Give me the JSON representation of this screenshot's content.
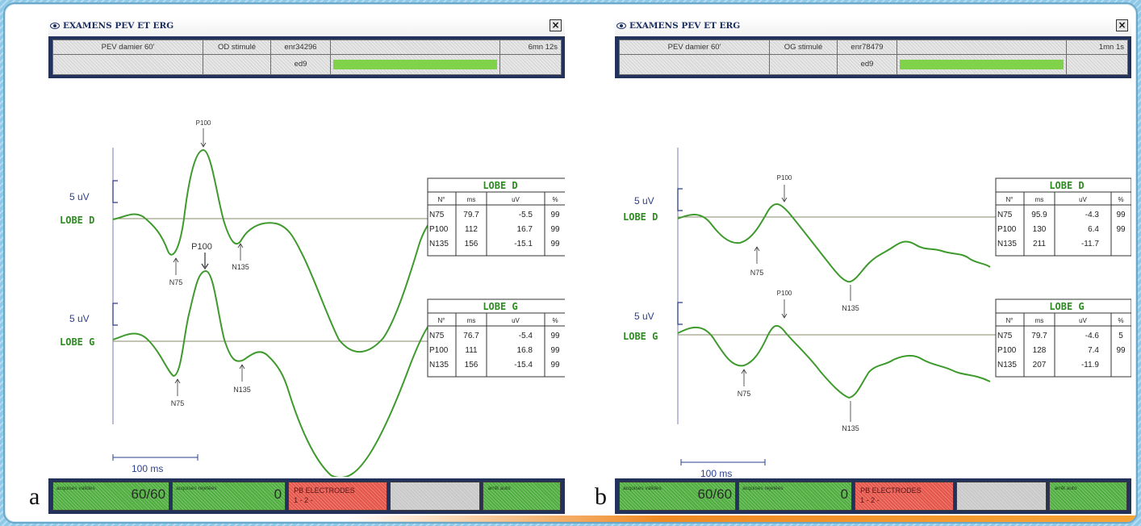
{
  "panels": [
    {
      "letter": "a",
      "title": "EXAMENS PEV ET ERG",
      "close_label": "×",
      "header_row1": [
        "PEV damier 60'",
        "OD stimulé",
        "enr34296",
        "",
        "6mn 12s"
      ],
      "header_row2": [
        "",
        "",
        "ed9",
        "",
        ""
      ],
      "progress": 1.0,
      "scale_label_d": "5 uV",
      "scale_label_g": "5 uV",
      "lobe_d_label": "LOBE D",
      "lobe_g_label": "LOBE G",
      "peaks_d": {
        "p100": "P100",
        "n75": "N75",
        "n135": "N135"
      },
      "peaks_g": {
        "p100": "P100",
        "n75": "N75",
        "n135": "N135"
      },
      "time_scale": "100 ms",
      "table_d": {
        "title": "LOBE D",
        "headers": [
          "N°",
          "ms",
          "uV",
          "%"
        ],
        "rows": [
          [
            "N75",
            "79.7",
            "-5.5",
            "99"
          ],
          [
            "P100",
            "112",
            "16.7",
            "99"
          ],
          [
            "N135",
            "156",
            "-15.1",
            "99"
          ]
        ]
      },
      "table_g": {
        "title": "LOBE G",
        "headers": [
          "N°",
          "ms",
          "uV",
          "%"
        ],
        "rows": [
          [
            "N75",
            "76.7",
            "-5.4",
            "99"
          ],
          [
            "P100",
            "111",
            "16.8",
            "99"
          ],
          [
            "N135",
            "156",
            "-15.4",
            "99"
          ]
        ]
      },
      "bottom": {
        "acquired_label": "acquises valides",
        "acquired_value": "60/60",
        "rejected_label": "acquises rejetées",
        "rejected_value": "0",
        "electrodes_label": "PB ELECTRODES",
        "electrodes_value": "1 - 2 -",
        "stop_label": "arrêt auto"
      }
    },
    {
      "letter": "b",
      "title": "EXAMENS PEV ET ERG",
      "close_label": "×",
      "header_row1": [
        "PEV damier 60'",
        "OG stimulé",
        "enr78479",
        "",
        "1mn 1s"
      ],
      "header_row2": [
        "",
        "",
        "ed9",
        "",
        ""
      ],
      "progress": 1.0,
      "scale_label_d": "5 uV",
      "scale_label_g": "5 uV",
      "lobe_d_label": "LOBE D",
      "lobe_g_label": "LOBE G",
      "peaks_d": {
        "p100": "P100",
        "n75": "N75",
        "n135": "N135"
      },
      "peaks_g": {
        "p100": "P100",
        "n75": "N75",
        "n135": "N135"
      },
      "time_scale": "100 ms",
      "table_d": {
        "title": "LOBE D",
        "headers": [
          "N°",
          "ms",
          "uV",
          "%"
        ],
        "rows": [
          [
            "N75",
            "95.9",
            "-4.3",
            "99"
          ],
          [
            "P100",
            "130",
            "6.4",
            "99"
          ],
          [
            "N135",
            "211",
            "-11.7",
            ""
          ]
        ]
      },
      "table_g": {
        "title": "LOBE G",
        "headers": [
          "N°",
          "ms",
          "uV",
          "%"
        ],
        "rows": [
          [
            "N75",
            "79.7",
            "-4.6",
            "5"
          ],
          [
            "P100",
            "128",
            "7.4",
            "99"
          ],
          [
            "N135",
            "207",
            "-11.9",
            ""
          ]
        ]
      },
      "bottom": {
        "acquired_label": "acquises valides",
        "acquired_value": "60/60",
        "rejected_label": "acquises rejetées",
        "rejected_value": "0",
        "electrodes_label": "PB ELECTRODES",
        "electrodes_value": "1 - 2 -",
        "stop_label": "arrêt auto"
      }
    }
  ],
  "colors": {
    "trace": "#3f9a2e",
    "label_blue": "#2a3f8f",
    "lobe_green": "#2e8b22",
    "window_header": "#22325a",
    "progress": "#7fd24a"
  }
}
